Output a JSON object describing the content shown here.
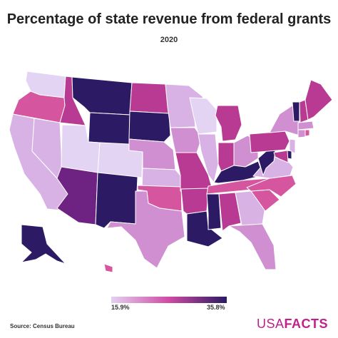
{
  "title": "Percentage of state revenue from federal grants",
  "subtitle": "2020",
  "legend": {
    "min_label": "15.9%",
    "max_label": "35.8%",
    "min_color": "#e2d2f2",
    "mid_color": "#d04aa3",
    "max_color": "#2a1a64"
  },
  "source": "Source: Census Bureau",
  "logo": {
    "part1": "USA",
    "part2": "FACTS",
    "color": "#c0208a"
  },
  "map_data": {
    "type": "choropleth",
    "scale_range_percent": [
      15.9,
      35.8
    ],
    "levels": {
      "very_light": "#e4d4f4",
      "light": "#d8b2e4",
      "light_mid": "#cf8fd0",
      "mid": "#d6559f",
      "mid_dark": "#b93a92",
      "dark_purple": "#6e2382",
      "darkest": "#2c1b64"
    },
    "states": [
      {
        "state": "WA",
        "level": "very_light"
      },
      {
        "state": "OR",
        "level": "mid"
      },
      {
        "state": "CA",
        "level": "light"
      },
      {
        "state": "NV",
        "level": "light"
      },
      {
        "state": "ID",
        "level": "mid_dark"
      },
      {
        "state": "MT",
        "level": "darkest"
      },
      {
        "state": "WY",
        "level": "darkest"
      },
      {
        "state": "UT",
        "level": "very_light"
      },
      {
        "state": "CO",
        "level": "very_light"
      },
      {
        "state": "AZ",
        "level": "dark_purple"
      },
      {
        "state": "NM",
        "level": "darkest"
      },
      {
        "state": "ND",
        "level": "mid_dark"
      },
      {
        "state": "SD",
        "level": "darkest"
      },
      {
        "state": "NE",
        "level": "light_mid"
      },
      {
        "state": "KS",
        "level": "light"
      },
      {
        "state": "OK",
        "level": "mid"
      },
      {
        "state": "TX",
        "level": "light_mid"
      },
      {
        "state": "MN",
        "level": "light"
      },
      {
        "state": "IA",
        "level": "light_mid"
      },
      {
        "state": "MO",
        "level": "mid_dark"
      },
      {
        "state": "AR",
        "level": "mid_dark"
      },
      {
        "state": "LA",
        "level": "darkest"
      },
      {
        "state": "WI",
        "level": "very_light"
      },
      {
        "state": "IL",
        "level": "light"
      },
      {
        "state": "MI",
        "level": "mid_dark"
      },
      {
        "state": "IN",
        "level": "mid_dark"
      },
      {
        "state": "OH",
        "level": "light_mid"
      },
      {
        "state": "KY",
        "level": "darkest"
      },
      {
        "state": "TN",
        "level": "mid"
      },
      {
        "state": "MS",
        "level": "darkest"
      },
      {
        "state": "AL",
        "level": "mid_dark"
      },
      {
        "state": "GA",
        "level": "light"
      },
      {
        "state": "FL",
        "level": "light_mid"
      },
      {
        "state": "SC",
        "level": "mid"
      },
      {
        "state": "NC",
        "level": "mid"
      },
      {
        "state": "VA",
        "level": "light"
      },
      {
        "state": "WV",
        "level": "darkest"
      },
      {
        "state": "PA",
        "level": "mid_dark"
      },
      {
        "state": "NY",
        "level": "light_mid"
      },
      {
        "state": "VT",
        "level": "darkest"
      },
      {
        "state": "NH",
        "level": "mid_dark"
      },
      {
        "state": "ME",
        "level": "mid_dark"
      },
      {
        "state": "MA",
        "level": "light_mid"
      },
      {
        "state": "CT",
        "level": "light_mid"
      },
      {
        "state": "RI",
        "level": "mid"
      },
      {
        "state": "NJ",
        "level": "light"
      },
      {
        "state": "DE",
        "level": "darkest"
      },
      {
        "state": "MD",
        "level": "mid_dark"
      },
      {
        "state": "AK",
        "level": "darkest"
      },
      {
        "state": "HI",
        "level": "mid"
      }
    ]
  }
}
